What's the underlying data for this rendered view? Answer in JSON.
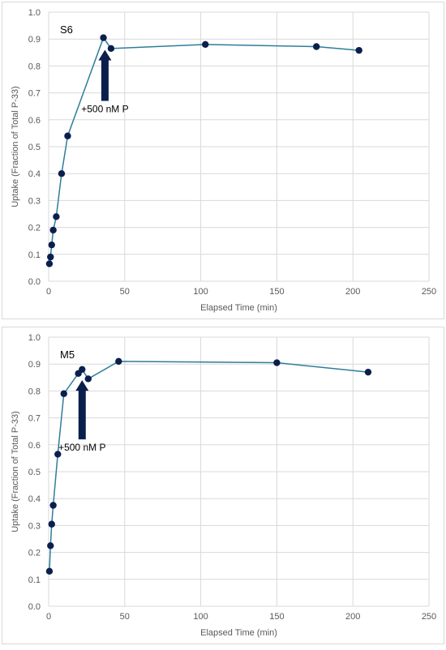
{
  "chart_data": [
    {
      "type": "scatter",
      "panel_label": "S6",
      "xlabel": "Elapsed Time (min)",
      "ylabel": "Uptake (Fraction of Total P-33)",
      "xlim": [
        0,
        250
      ],
      "ylim": [
        0,
        1.0
      ],
      "x_ticks": [
        "0",
        "50",
        "100",
        "150",
        "200",
        "250"
      ],
      "y_ticks": [
        "0.0",
        "0.1",
        "0.2",
        "0.3",
        "0.4",
        "0.5",
        "0.6",
        "0.7",
        "0.8",
        "0.9",
        "1.0"
      ],
      "grid": true,
      "series": [
        {
          "x": [
            0.5,
            1.2,
            2.0,
            3.0,
            5.0,
            8.5,
            12.5,
            36.0,
            41.0,
            103.0,
            176.0,
            204.0
          ],
          "y": [
            0.065,
            0.09,
            0.135,
            0.19,
            0.24,
            0.4,
            0.54,
            0.905,
            0.865,
            0.88,
            0.872,
            0.858
          ]
        }
      ],
      "annotation": {
        "text": "+500 nM P",
        "arrow_x": 37,
        "arrow_tip_y": 0.86,
        "arrow_tail_y": 0.67
      },
      "colors": {
        "series": "#2e7d9a",
        "marker": "#0b1f4d",
        "arrow": "#0b1f4d",
        "grid": "#d9d9d9"
      }
    },
    {
      "type": "scatter",
      "panel_label": "M5",
      "xlabel": "Elapsed Time (min)",
      "ylabel": "Uptake (Fraction of Total P-33)",
      "xlim": [
        0,
        250
      ],
      "ylim": [
        0,
        1.0
      ],
      "x_ticks": [
        "0",
        "50",
        "100",
        "150",
        "200",
        "250"
      ],
      "y_ticks": [
        "0.0",
        "0.1",
        "0.2",
        "0.3",
        "0.4",
        "0.5",
        "0.6",
        "0.7",
        "0.8",
        "0.9",
        "1.0"
      ],
      "grid": true,
      "series": [
        {
          "x": [
            0.5,
            1.2,
            2.0,
            3.0,
            6.0,
            10.0,
            19.5,
            22.0,
            26.0,
            46.0,
            150.0,
            210.0
          ],
          "y": [
            0.13,
            0.225,
            0.305,
            0.375,
            0.565,
            0.79,
            0.865,
            0.88,
            0.845,
            0.91,
            0.905,
            0.87
          ]
        }
      ],
      "annotation": {
        "text": "+500 nM P",
        "arrow_x": 22,
        "arrow_tip_y": 0.84,
        "arrow_tail_y": 0.62
      },
      "colors": {
        "series": "#2e7d9a",
        "marker": "#0b1f4d",
        "arrow": "#0b1f4d",
        "grid": "#d9d9d9"
      }
    }
  ]
}
